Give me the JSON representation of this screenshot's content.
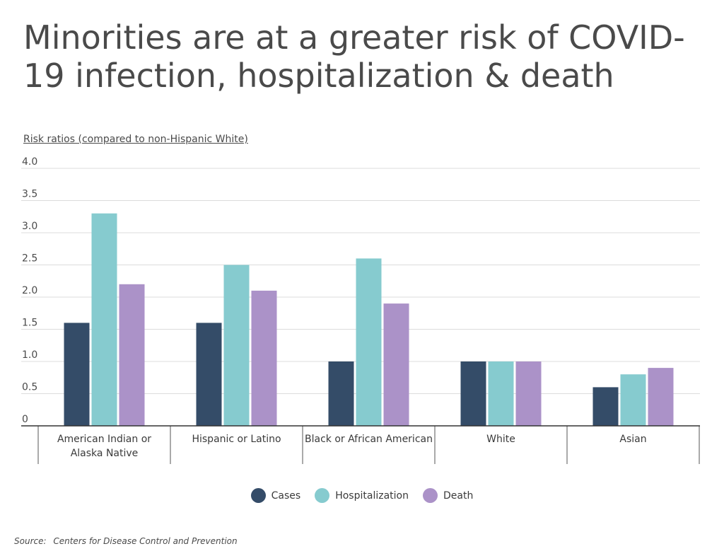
{
  "chart_data": {
    "type": "bar",
    "title": "Minorities are at a greater risk of COVID-19 infection, hospitalization & death",
    "ylabel": "Risk ratios (compared to non-Hispanic White)",
    "xlabel": "",
    "ylim": [
      0,
      4.0
    ],
    "yticks": [
      "0",
      "0.5",
      "1.0",
      "1.5",
      "2.0",
      "2.5",
      "3.0",
      "3.5",
      "4.0"
    ],
    "ytick_values": [
      0,
      0.5,
      1.0,
      1.5,
      2.0,
      2.5,
      3.0,
      3.5,
      4.0
    ],
    "grid": true,
    "legend_position": "bottom",
    "categories": [
      [
        "American Indian or",
        "Alaska Native"
      ],
      [
        "Hispanic or Latino"
      ],
      [
        "Black or African American"
      ],
      [
        "White"
      ],
      [
        "Asian"
      ]
    ],
    "series": [
      {
        "name": "Cases",
        "color": "#344c68",
        "values": [
          1.6,
          1.6,
          1.0,
          1.0,
          0.6
        ]
      },
      {
        "name": "Hospitalization",
        "color": "#86cbcf",
        "values": [
          3.3,
          2.5,
          2.6,
          1.0,
          0.8
        ]
      },
      {
        "name": "Death",
        "color": "#ab92c8",
        "values": [
          2.2,
          2.1,
          1.9,
          1.0,
          0.9
        ]
      }
    ]
  },
  "source": {
    "label": "Source:",
    "text": "Centers for Disease Control and Prevention"
  }
}
